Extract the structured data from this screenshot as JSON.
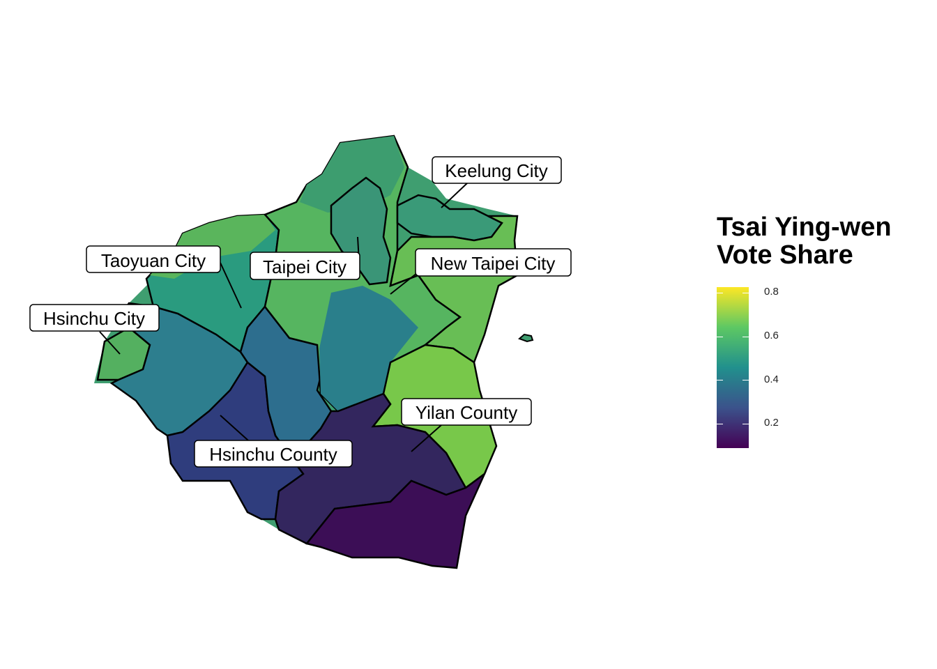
{
  "map": {
    "labels": {
      "keelung": "Keelung City",
      "taoyuan": "Taoyuan City",
      "taipei": "Taipei City",
      "new_taipei": "New Taipei City",
      "hsinchu_city": "Hsinchu City",
      "yilan": "Yilan County",
      "hsinchu_county": "Hsinchu County"
    }
  },
  "legend": {
    "title_line1": "Tsai Ying-wen",
    "title_line2": "Vote Share",
    "ticks": [
      "0.8",
      "0.6",
      "0.4",
      "0.2"
    ],
    "palette": [
      "#440154",
      "#3b528b",
      "#21908d",
      "#5dc863",
      "#fde725"
    ]
  }
}
